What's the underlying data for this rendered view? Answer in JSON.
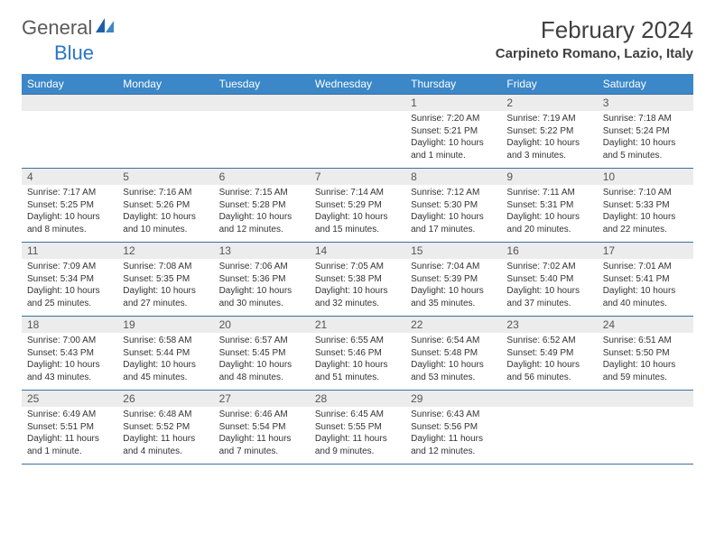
{
  "logo": {
    "text_general": "General",
    "text_blue": "Blue",
    "color_general": "#5a5a5a",
    "color_blue": "#2b76c5"
  },
  "header": {
    "month_title": "February 2024",
    "location": "Carpineto Romano, Lazio, Italy"
  },
  "colors": {
    "header_bar": "#3b87c8",
    "header_text": "#ffffff",
    "daynum_bg": "#ececec",
    "border": "#3b6fa0",
    "body_text": "#333333"
  },
  "day_headers": [
    "Sunday",
    "Monday",
    "Tuesday",
    "Wednesday",
    "Thursday",
    "Friday",
    "Saturday"
  ],
  "weeks": [
    [
      {
        "num": "",
        "sunrise": "",
        "sunset": "",
        "daylight": ""
      },
      {
        "num": "",
        "sunrise": "",
        "sunset": "",
        "daylight": ""
      },
      {
        "num": "",
        "sunrise": "",
        "sunset": "",
        "daylight": ""
      },
      {
        "num": "",
        "sunrise": "",
        "sunset": "",
        "daylight": ""
      },
      {
        "num": "1",
        "sunrise": "Sunrise: 7:20 AM",
        "sunset": "Sunset: 5:21 PM",
        "daylight": "Daylight: 10 hours and 1 minute."
      },
      {
        "num": "2",
        "sunrise": "Sunrise: 7:19 AM",
        "sunset": "Sunset: 5:22 PM",
        "daylight": "Daylight: 10 hours and 3 minutes."
      },
      {
        "num": "3",
        "sunrise": "Sunrise: 7:18 AM",
        "sunset": "Sunset: 5:24 PM",
        "daylight": "Daylight: 10 hours and 5 minutes."
      }
    ],
    [
      {
        "num": "4",
        "sunrise": "Sunrise: 7:17 AM",
        "sunset": "Sunset: 5:25 PM",
        "daylight": "Daylight: 10 hours and 8 minutes."
      },
      {
        "num": "5",
        "sunrise": "Sunrise: 7:16 AM",
        "sunset": "Sunset: 5:26 PM",
        "daylight": "Daylight: 10 hours and 10 minutes."
      },
      {
        "num": "6",
        "sunrise": "Sunrise: 7:15 AM",
        "sunset": "Sunset: 5:28 PM",
        "daylight": "Daylight: 10 hours and 12 minutes."
      },
      {
        "num": "7",
        "sunrise": "Sunrise: 7:14 AM",
        "sunset": "Sunset: 5:29 PM",
        "daylight": "Daylight: 10 hours and 15 minutes."
      },
      {
        "num": "8",
        "sunrise": "Sunrise: 7:12 AM",
        "sunset": "Sunset: 5:30 PM",
        "daylight": "Daylight: 10 hours and 17 minutes."
      },
      {
        "num": "9",
        "sunrise": "Sunrise: 7:11 AM",
        "sunset": "Sunset: 5:31 PM",
        "daylight": "Daylight: 10 hours and 20 minutes."
      },
      {
        "num": "10",
        "sunrise": "Sunrise: 7:10 AM",
        "sunset": "Sunset: 5:33 PM",
        "daylight": "Daylight: 10 hours and 22 minutes."
      }
    ],
    [
      {
        "num": "11",
        "sunrise": "Sunrise: 7:09 AM",
        "sunset": "Sunset: 5:34 PM",
        "daylight": "Daylight: 10 hours and 25 minutes."
      },
      {
        "num": "12",
        "sunrise": "Sunrise: 7:08 AM",
        "sunset": "Sunset: 5:35 PM",
        "daylight": "Daylight: 10 hours and 27 minutes."
      },
      {
        "num": "13",
        "sunrise": "Sunrise: 7:06 AM",
        "sunset": "Sunset: 5:36 PM",
        "daylight": "Daylight: 10 hours and 30 minutes."
      },
      {
        "num": "14",
        "sunrise": "Sunrise: 7:05 AM",
        "sunset": "Sunset: 5:38 PM",
        "daylight": "Daylight: 10 hours and 32 minutes."
      },
      {
        "num": "15",
        "sunrise": "Sunrise: 7:04 AM",
        "sunset": "Sunset: 5:39 PM",
        "daylight": "Daylight: 10 hours and 35 minutes."
      },
      {
        "num": "16",
        "sunrise": "Sunrise: 7:02 AM",
        "sunset": "Sunset: 5:40 PM",
        "daylight": "Daylight: 10 hours and 37 minutes."
      },
      {
        "num": "17",
        "sunrise": "Sunrise: 7:01 AM",
        "sunset": "Sunset: 5:41 PM",
        "daylight": "Daylight: 10 hours and 40 minutes."
      }
    ],
    [
      {
        "num": "18",
        "sunrise": "Sunrise: 7:00 AM",
        "sunset": "Sunset: 5:43 PM",
        "daylight": "Daylight: 10 hours and 43 minutes."
      },
      {
        "num": "19",
        "sunrise": "Sunrise: 6:58 AM",
        "sunset": "Sunset: 5:44 PM",
        "daylight": "Daylight: 10 hours and 45 minutes."
      },
      {
        "num": "20",
        "sunrise": "Sunrise: 6:57 AM",
        "sunset": "Sunset: 5:45 PM",
        "daylight": "Daylight: 10 hours and 48 minutes."
      },
      {
        "num": "21",
        "sunrise": "Sunrise: 6:55 AM",
        "sunset": "Sunset: 5:46 PM",
        "daylight": "Daylight: 10 hours and 51 minutes."
      },
      {
        "num": "22",
        "sunrise": "Sunrise: 6:54 AM",
        "sunset": "Sunset: 5:48 PM",
        "daylight": "Daylight: 10 hours and 53 minutes."
      },
      {
        "num": "23",
        "sunrise": "Sunrise: 6:52 AM",
        "sunset": "Sunset: 5:49 PM",
        "daylight": "Daylight: 10 hours and 56 minutes."
      },
      {
        "num": "24",
        "sunrise": "Sunrise: 6:51 AM",
        "sunset": "Sunset: 5:50 PM",
        "daylight": "Daylight: 10 hours and 59 minutes."
      }
    ],
    [
      {
        "num": "25",
        "sunrise": "Sunrise: 6:49 AM",
        "sunset": "Sunset: 5:51 PM",
        "daylight": "Daylight: 11 hours and 1 minute."
      },
      {
        "num": "26",
        "sunrise": "Sunrise: 6:48 AM",
        "sunset": "Sunset: 5:52 PM",
        "daylight": "Daylight: 11 hours and 4 minutes."
      },
      {
        "num": "27",
        "sunrise": "Sunrise: 6:46 AM",
        "sunset": "Sunset: 5:54 PM",
        "daylight": "Daylight: 11 hours and 7 minutes."
      },
      {
        "num": "28",
        "sunrise": "Sunrise: 6:45 AM",
        "sunset": "Sunset: 5:55 PM",
        "daylight": "Daylight: 11 hours and 9 minutes."
      },
      {
        "num": "29",
        "sunrise": "Sunrise: 6:43 AM",
        "sunset": "Sunset: 5:56 PM",
        "daylight": "Daylight: 11 hours and 12 minutes."
      },
      {
        "num": "",
        "sunrise": "",
        "sunset": "",
        "daylight": ""
      },
      {
        "num": "",
        "sunrise": "",
        "sunset": "",
        "daylight": ""
      }
    ]
  ]
}
